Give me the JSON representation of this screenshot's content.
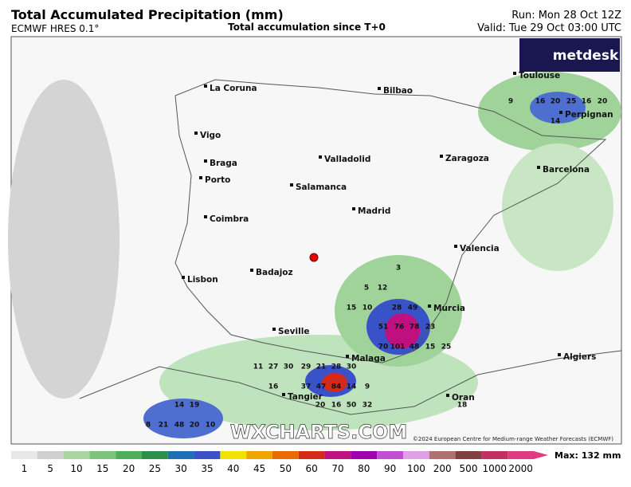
{
  "header": {
    "title": "Total Accumulated Precipitation (mm)",
    "model": "ECMWF HRES 0.1°",
    "subtitle": "Total accumulation since T+0",
    "run": "Run: Mon 28 Oct 12Z",
    "valid": "Valid: Tue 29 Oct 03:00 UTC"
  },
  "brand": "metdesk",
  "cities": [
    "La Coruna",
    "Bilbao",
    "Toulouse",
    "Perpignan",
    "Vigo",
    "Braga",
    "Porto",
    "Valladolid",
    "Zaragoza",
    "Barcelona",
    "Salamanca",
    "Madrid",
    "Coimbra",
    "Valencia",
    "Lisbon",
    "Badajoz",
    "Murcia",
    "Seville",
    "Malaga",
    "Algiers",
    "Tangier",
    "Oran"
  ],
  "precip_labels": [
    15,
    10,
    28,
    49,
    51,
    76,
    78,
    23,
    70,
    101,
    48,
    15,
    25,
    27,
    30,
    29,
    21,
    28,
    30,
    16,
    37,
    47,
    84,
    14,
    9,
    20,
    16,
    50,
    32,
    9,
    16,
    20,
    25,
    16,
    20,
    14,
    8,
    21,
    48,
    20,
    10,
    14,
    19,
    18,
    11,
    12,
    5,
    3
  ],
  "watermark": "WXCHARTS.COM",
  "copyright": "©2024 European Centre for Medium-range Weather Forecasts (ECMWF)",
  "legend": {
    "levels": [
      1,
      5,
      10,
      15,
      20,
      25,
      30,
      35,
      40,
      45,
      50,
      60,
      70,
      80,
      90,
      100,
      200,
      500,
      1000,
      2000
    ],
    "colors": [
      "#e8e8e8",
      "#cfcfcf",
      "#a8d5a0",
      "#7cc47a",
      "#4eae5a",
      "#2f8f4a",
      "#1e6fb8",
      "#3a52c8",
      "#f2e200",
      "#f0a400",
      "#e86a00",
      "#d42a1a",
      "#c01080",
      "#a000b0",
      "#c050d0",
      "#e0a0e8",
      "#b07070",
      "#804040",
      "#c03060",
      "#e03a80"
    ],
    "max": "Max: 132 mm"
  }
}
